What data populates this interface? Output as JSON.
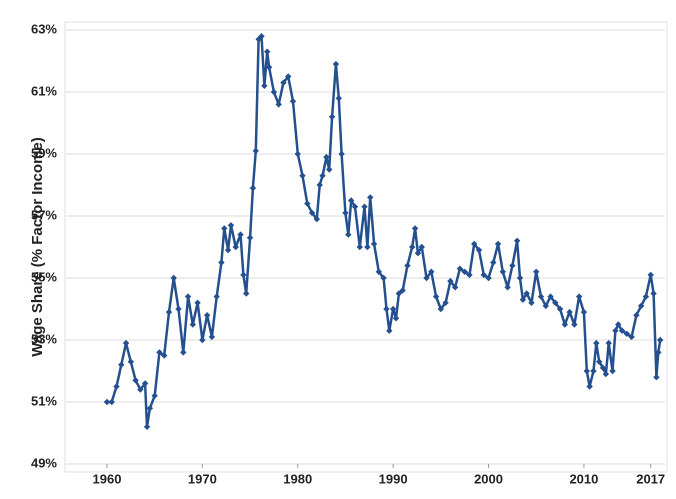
{
  "chart_data": {
    "type": "line",
    "y_label": "Wage Share (% Factor Income)",
    "color": "#25508f",
    "grid": true,
    "xlim": [
      1955.6,
      2018.5
    ],
    "ylim": [
      49,
      63
    ],
    "xticks": [
      1960,
      1970,
      1980,
      1990,
      2000,
      2010,
      2017
    ],
    "yticks": [
      {
        "value": 49,
        "label": "49%"
      },
      {
        "value": 51,
        "label": "51%"
      },
      {
        "value": 53,
        "label": "53%"
      },
      {
        "value": 55,
        "label": "55%"
      },
      {
        "value": 57,
        "label": "57%"
      },
      {
        "value": 59,
        "label": "59%"
      },
      {
        "value": 61,
        "label": "61%"
      },
      {
        "value": 63,
        "label": "63%"
      }
    ],
    "x": [
      1960,
      1960.5,
      1961,
      1961.5,
      1962,
      1962.5,
      1963,
      1963.5,
      1964,
      1964.2,
      1964.5,
      1965,
      1965.5,
      1966,
      1966.5,
      1967,
      1967.5,
      1968,
      1968.5,
      1969,
      1969.5,
      1970,
      1970.5,
      1971,
      1971.5,
      1972,
      1972.3,
      1972.7,
      1973,
      1973.5,
      1974,
      1974.3,
      1974.6,
      1975,
      1975.3,
      1975.6,
      1975.9,
      1976.2,
      1976.5,
      1976.8,
      1977,
      1977.5,
      1978,
      1978.5,
      1979,
      1979.5,
      1980,
      1980.5,
      1981,
      1981.5,
      1982,
      1982.3,
      1982.6,
      1983,
      1983.3,
      1983.6,
      1984,
      1984.3,
      1984.6,
      1985,
      1985.3,
      1985.6,
      1986,
      1986.5,
      1987,
      1987.3,
      1987.6,
      1988,
      1988.5,
      1989,
      1989.3,
      1989.6,
      1990,
      1990.3,
      1990.6,
      1991,
      1991.5,
      1992,
      1992.3,
      1992.6,
      1993,
      1993.5,
      1994,
      1994.5,
      1995,
      1995.5,
      1996,
      1996.5,
      1997,
      1997.5,
      1998,
      1998.5,
      1999,
      1999.5,
      2000,
      2000.5,
      2001,
      2001.5,
      2002,
      2002.5,
      2003,
      2003.3,
      2003.6,
      2004,
      2004.5,
      2005,
      2005.5,
      2006,
      2006.5,
      2007,
      2007.5,
      2008,
      2008.5,
      2009,
      2009.5,
      2010,
      2010.3,
      2010.6,
      2011,
      2011.3,
      2011.6,
      2012,
      2012.3,
      2012.6,
      2013,
      2013.3,
      2013.6,
      2014,
      2014.5,
      2015,
      2015.5,
      2016,
      2016.5,
      2017,
      2017.3,
      2017.6,
      2017.8,
      2018
    ],
    "values": [
      51.0,
      51.0,
      51.5,
      52.2,
      52.9,
      52.3,
      51.7,
      51.4,
      51.6,
      50.2,
      50.8,
      51.2,
      52.6,
      52.5,
      53.9,
      55.0,
      54.0,
      52.6,
      54.4,
      53.5,
      54.2,
      53.0,
      53.8,
      53.1,
      54.4,
      55.5,
      56.6,
      55.9,
      56.7,
      56.0,
      56.4,
      55.1,
      54.5,
      56.3,
      57.9,
      59.1,
      62.7,
      62.8,
      61.2,
      62.3,
      61.8,
      61.0,
      60.6,
      61.3,
      61.5,
      60.7,
      59.0,
      58.3,
      57.4,
      57.1,
      56.9,
      58.0,
      58.3,
      58.9,
      58.5,
      60.2,
      61.9,
      60.8,
      59.0,
      57.1,
      56.4,
      57.5,
      57.3,
      56.0,
      57.3,
      56.0,
      57.6,
      56.1,
      55.2,
      55.0,
      54.0,
      53.3,
      54.0,
      53.7,
      54.5,
      54.6,
      55.4,
      56.0,
      56.6,
      55.8,
      56.0,
      55.0,
      55.2,
      54.4,
      54.0,
      54.2,
      54.9,
      54.7,
      55.3,
      55.2,
      55.1,
      56.1,
      55.9,
      55.1,
      55.0,
      55.5,
      56.1,
      55.2,
      54.7,
      55.4,
      56.2,
      55.0,
      54.3,
      54.5,
      54.2,
      55.2,
      54.4,
      54.1,
      54.4,
      54.2,
      54.0,
      53.5,
      53.9,
      53.5,
      54.4,
      53.9,
      52.0,
      51.5,
      52.0,
      52.9,
      52.3,
      52.1,
      51.9,
      52.9,
      52.0,
      53.3,
      53.5,
      53.3,
      53.2,
      53.1,
      53.8,
      54.1,
      54.4,
      55.1,
      54.5,
      51.8,
      52.6,
      53.0
    ]
  }
}
